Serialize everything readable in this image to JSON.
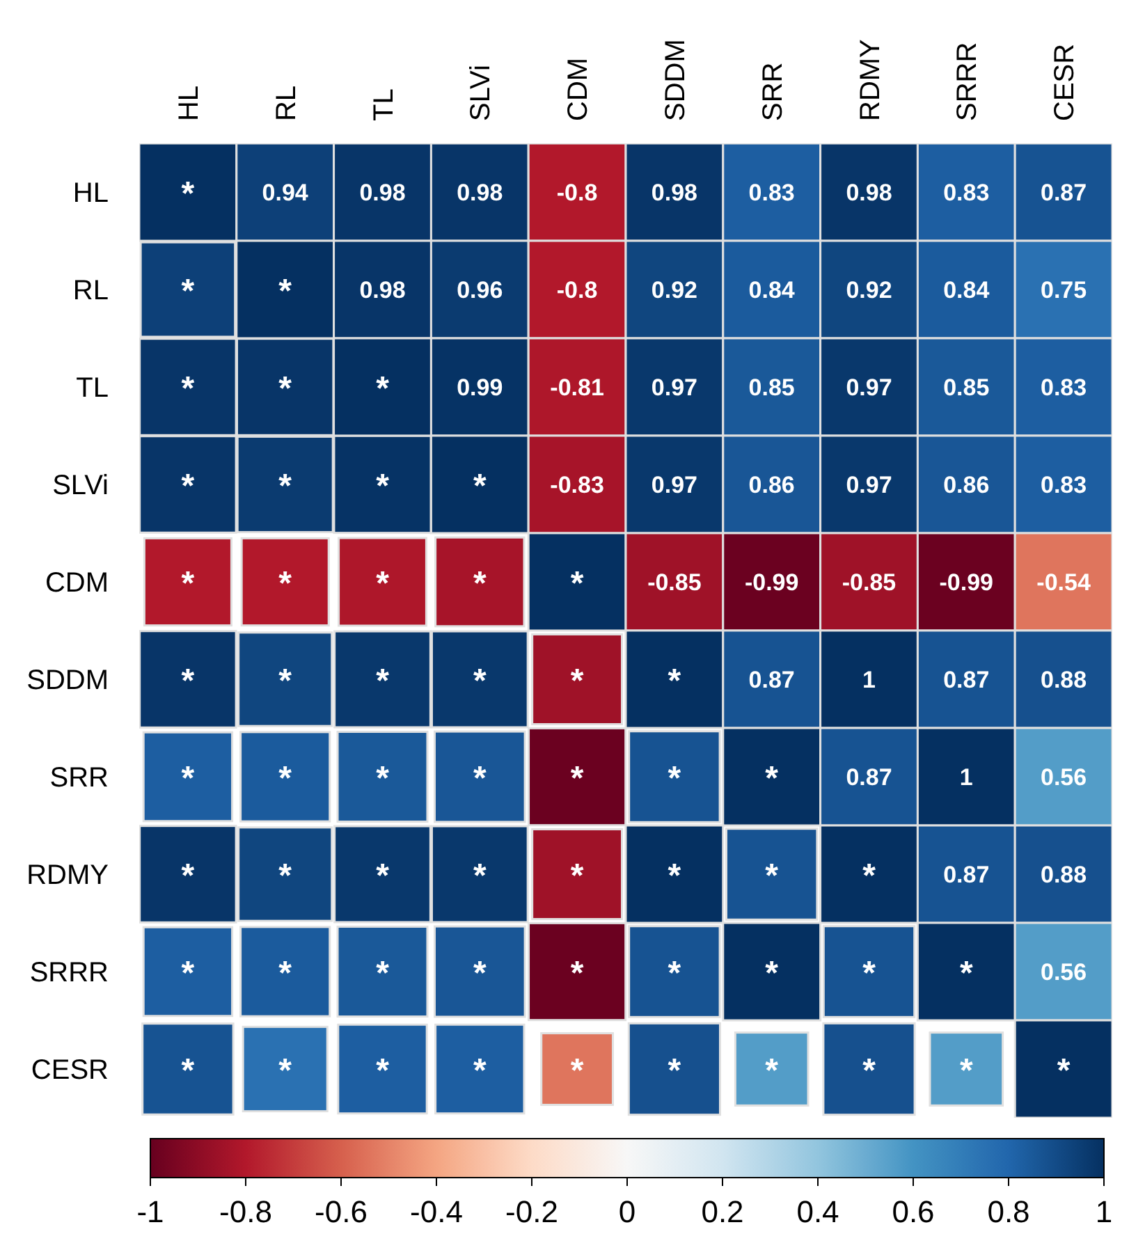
{
  "chart_data": {
    "type": "heatmap",
    "categories": [
      "HL",
      "RL",
      "TL",
      "SLVi",
      "CDM",
      "SDDM",
      "SRR",
      "RDMY",
      "SRRR",
      "CESR"
    ],
    "y_categories": [
      "HL",
      "RL",
      "TL",
      "SLVi",
      "CDM",
      "SDDM",
      "SRR",
      "RDMY",
      "SRRR",
      "CESR"
    ],
    "cells": [
      [
        1,
        0.94,
        0.98,
        0.98,
        -0.8,
        0.98,
        0.83,
        0.98,
        0.83,
        0.87
      ],
      [
        0.94,
        1,
        0.98,
        0.96,
        -0.8,
        0.92,
        0.84,
        0.92,
        0.84,
        0.75
      ],
      [
        0.98,
        0.98,
        1,
        0.99,
        -0.81,
        0.97,
        0.85,
        0.97,
        0.85,
        0.83
      ],
      [
        0.98,
        0.96,
        0.99,
        1,
        -0.83,
        0.97,
        0.86,
        0.97,
        0.86,
        0.83
      ],
      [
        -0.8,
        -0.8,
        -0.81,
        -0.83,
        1,
        -0.85,
        -0.99,
        -0.85,
        -0.99,
        -0.54
      ],
      [
        0.98,
        0.92,
        0.97,
        0.97,
        -0.85,
        1,
        0.87,
        1,
        0.87,
        0.88
      ],
      [
        0.83,
        0.84,
        0.85,
        0.86,
        -0.99,
        0.87,
        1,
        0.87,
        1,
        0.56
      ],
      [
        0.98,
        0.92,
        0.97,
        0.97,
        -0.85,
        1,
        0.87,
        1,
        0.87,
        0.88
      ],
      [
        0.83,
        0.84,
        0.85,
        0.86,
        -0.99,
        0.87,
        1,
        0.87,
        1,
        0.56
      ],
      [
        0.87,
        0.75,
        0.83,
        0.83,
        -0.54,
        0.88,
        0.56,
        0.88,
        0.56,
        1
      ]
    ],
    "cell_labels": [
      [
        "*",
        "0.94",
        "0.98",
        "0.98",
        "-0.8",
        "0.98",
        "0.83",
        "0.98",
        "0.83",
        "0.87"
      ],
      [
        "*",
        "*",
        "0.98",
        "0.96",
        "-0.8",
        "0.92",
        "0.84",
        "0.92",
        "0.84",
        "0.75"
      ],
      [
        "*",
        "*",
        "*",
        "0.99",
        "-0.81",
        "0.97",
        "0.85",
        "0.97",
        "0.85",
        "0.83"
      ],
      [
        "*",
        "*",
        "*",
        "*",
        "-0.83",
        "0.97",
        "0.86",
        "0.97",
        "0.86",
        "0.83"
      ],
      [
        "*",
        "*",
        "*",
        "*",
        "*",
        "-0.85",
        "-0.99",
        "-0.85",
        "-0.99",
        "-0.54"
      ],
      [
        "*",
        "*",
        "*",
        "*",
        "*",
        "*",
        "0.87",
        "1",
        "0.87",
        "0.88"
      ],
      [
        "*",
        "*",
        "*",
        "*",
        "*",
        "*",
        "*",
        "0.87",
        "1",
        "0.56"
      ],
      [
        "*",
        "*",
        "*",
        "*",
        "*",
        "*",
        "*",
        "*",
        "0.87",
        "0.88"
      ],
      [
        "*",
        "*",
        "*",
        "*",
        "*",
        "*",
        "*",
        "*",
        "*",
        "0.56"
      ],
      [
        "*",
        "*",
        "*",
        "*",
        "*",
        "*",
        "*",
        "*",
        "*",
        "*"
      ]
    ],
    "clim": [
      -1,
      1
    ],
    "cticks": [
      -1,
      -0.8,
      -0.6,
      -0.4,
      -0.2,
      0,
      0.2,
      0.4,
      0.6,
      0.8,
      1
    ]
  }
}
